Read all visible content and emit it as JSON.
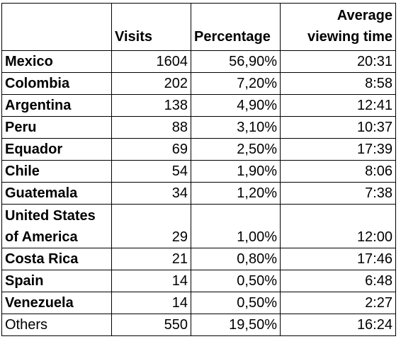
{
  "table": {
    "headers": [
      "",
      "Visits",
      "Percentage",
      "Average viewing time"
    ],
    "rows": [
      {
        "country": "Mexico",
        "visits": "1604",
        "percentage": "56,90%",
        "avg_time": "20:31"
      },
      {
        "country": "Colombia",
        "visits": "202",
        "percentage": "7,20%",
        "avg_time": "8:58"
      },
      {
        "country": "Argentina",
        "visits": "138",
        "percentage": "4,90%",
        "avg_time": "12:41"
      },
      {
        "country": "Peru",
        "visits": "88",
        "percentage": "3,10%",
        "avg_time": "10:37"
      },
      {
        "country": "Equador",
        "visits": "69",
        "percentage": "2,50%",
        "avg_time": "17:39"
      },
      {
        "country": "Chile",
        "visits": "54",
        "percentage": "1,90%",
        "avg_time": "8:06"
      },
      {
        "country": "Guatemala",
        "visits": "34",
        "percentage": "1,20%",
        "avg_time": "7:38"
      },
      {
        "country": "United States of America",
        "visits": "29",
        "percentage": "1,00%",
        "avg_time": "12:00"
      },
      {
        "country": "Costa Rica",
        "visits": "21",
        "percentage": "0,80%",
        "avg_time": "17:46"
      },
      {
        "country": "Spain",
        "visits": "14",
        "percentage": "0,50%",
        "avg_time": "6:48"
      },
      {
        "country": "Venezuela",
        "visits": "14",
        "percentage": "0,50%",
        "avg_time": "2:27"
      },
      {
        "country": "Others",
        "visits": "550",
        "percentage": "19,50%",
        "avg_time": "16:24"
      }
    ]
  }
}
